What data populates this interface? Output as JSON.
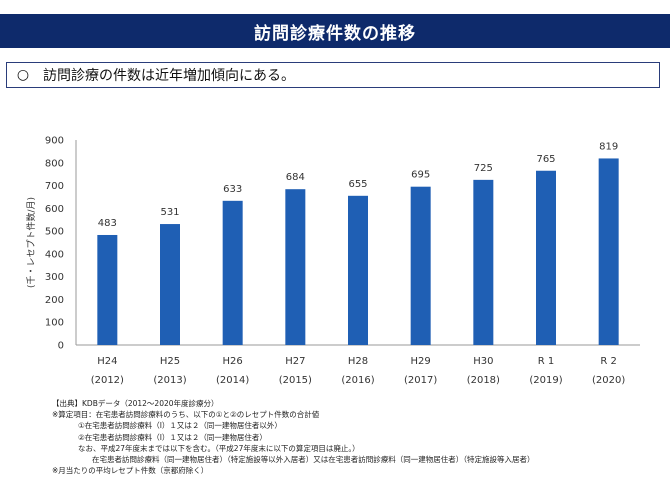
{
  "header": {
    "title": "訪問診療件数の推移"
  },
  "summary": {
    "bullet": "○",
    "text": "訪問診療の件数は近年増加傾向にある。"
  },
  "chart_data": {
    "type": "bar",
    "categories": [
      "H24",
      "H25",
      "H26",
      "H27",
      "H28",
      "H29",
      "H30",
      "R 1",
      "R 2"
    ],
    "category_sublabels": [
      "(2012)",
      "(2013)",
      "(2014)",
      "(2015)",
      "(2016)",
      "(2017)",
      "(2018)",
      "(2019)",
      "(2020)"
    ],
    "values": [
      483,
      531,
      633,
      684,
      655,
      695,
      725,
      765,
      819
    ],
    "data_labels": [
      "483",
      "531",
      "633",
      "684",
      "655",
      "695",
      "725",
      "765",
      "819"
    ],
    "title": "",
    "xlabel": "",
    "ylabel": "(千・レセプト件数/月)",
    "ylim": [
      0,
      900
    ],
    "yticks": [
      0,
      100,
      200,
      300,
      400,
      500,
      600,
      700,
      800,
      900
    ],
    "ytick_labels": [
      "0",
      "100",
      "200",
      "300",
      "400",
      "500",
      "600",
      "700",
      "800",
      "900"
    ],
    "grid": false,
    "bar_color": "#1f5fb4"
  },
  "notes": {
    "lines": [
      "【出典】KDBデータ（2012～2020年度診療分）",
      "※算定項目：在宅患者訪問診療料のうち、以下の①と②のレセプト件数の合計値",
      "①在宅患者訪問診療料（Ⅰ）１又は２（同一建物居住者以外）",
      "②在宅患者訪問診療料（Ⅰ）１又は２（同一建物居住者）",
      "なお、平成27年度末までは以下を含む。（平成27年度末に以下の算定項目は廃止。）",
      "在宅患者訪問診療料（同一建物居住者）（特定施設等以外入居者）又は在宅患者訪問診療料（同一建物居住者）（特定施設等入居者）",
      "※月当たりの平均レセプト件数（京都府除く）"
    ]
  }
}
